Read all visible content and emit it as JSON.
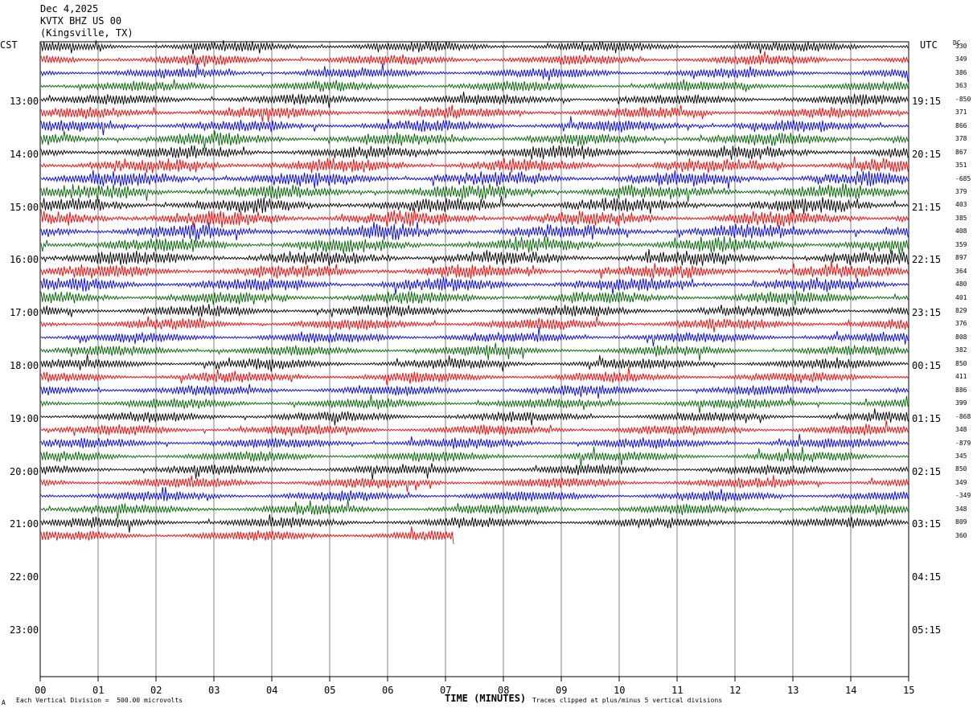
{
  "header": {
    "date": "Dec 4,2025",
    "station": "KVTX BHZ US 00",
    "location": "(Kingsville, TX)"
  },
  "left_axis_label": "CST",
  "right_axis_label": "UTC",
  "dc_label": "DC",
  "footer": {
    "scale": "Each Vertical Division =  500.00 microvolts",
    "clip": "Traces clipped at plus/minus 5 vertical divisions",
    "mark": "A"
  },
  "chart_data": {
    "type": "line",
    "xlabel": "TIME (MINUTES)",
    "x_ticks": [
      "00",
      "01",
      "02",
      "03",
      "04",
      "05",
      "06",
      "07",
      "08",
      "09",
      "10",
      "11",
      "12",
      "13",
      "14",
      "15"
    ],
    "xlim": [
      0,
      15
    ],
    "cst_hour_labels": [
      "13:00",
      "14:00",
      "15:00",
      "16:00",
      "17:00",
      "18:00",
      "19:00",
      "20:00",
      "21:00",
      "22:00",
      "23:00"
    ],
    "utc_hour_labels": [
      "19:15",
      "20:15",
      "21:15",
      "22:15",
      "23:15",
      "00:15",
      "01:15",
      "02:15",
      "03:15",
      "04:15",
      "05:15"
    ],
    "trace_colors": [
      "#000000",
      "#ff0000",
      "#0000ff",
      "#006400"
    ],
    "dc_offsets": [
      "330",
      "349",
      "386",
      "363",
      "-850",
      "371",
      "866",
      "378",
      "867",
      "351",
      "-685",
      "379",
      "403",
      "385",
      "408",
      "359",
      "897",
      "364",
      "480",
      "401",
      "829",
      "376",
      "808",
      "382",
      "850",
      "411",
      "886",
      "399",
      "-868",
      "348",
      "-879",
      "345",
      "850",
      "349",
      "-349",
      "348",
      "809",
      "360"
    ],
    "complete_traces": 37,
    "last_trace_end_minute": 7.15
  }
}
